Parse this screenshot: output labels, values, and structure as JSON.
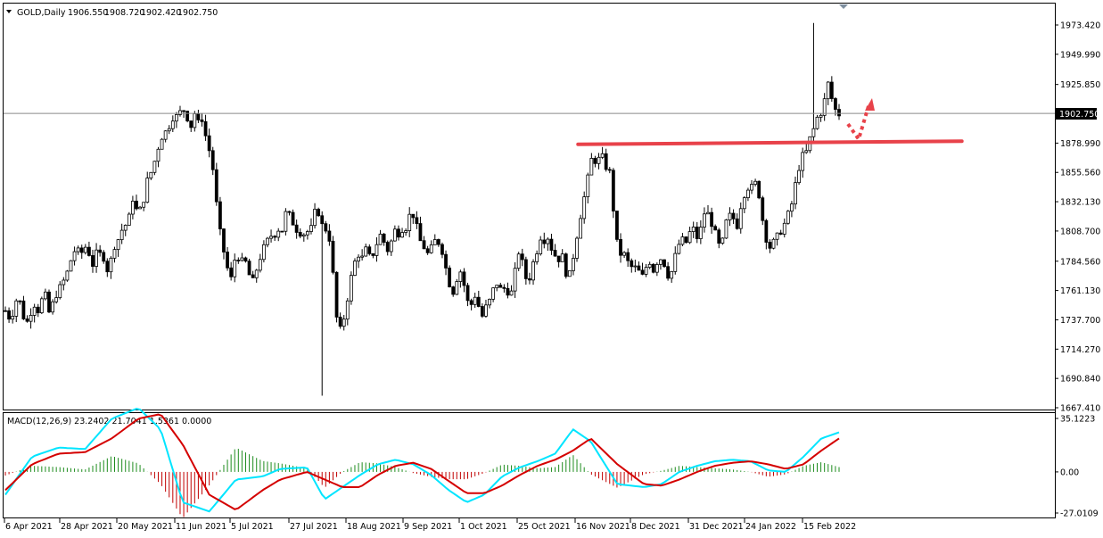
{
  "chart_data": [
    {
      "type": "candlestick",
      "title": "GOLD,Daily",
      "ohlc_readout": [
        "1906.550",
        "1908.720",
        "1902.420",
        "1902.750"
      ],
      "last_price": 1902.75,
      "last_price_label": "1902.750",
      "ylim": [
        1667.41,
        1985.0
      ],
      "y_ticks": [
        "1973.420",
        "1949.990",
        "1925.850",
        "1902.750",
        "1878.990",
        "1855.560",
        "1832.130",
        "1808.700",
        "1784.560",
        "1761.130",
        "1737.700",
        "1714.270",
        "1690.840",
        "1667.410"
      ],
      "x_ticks": [
        "6 Apr 2021",
        "28 Apr 2021",
        "20 May 2021",
        "11 Jun 2021",
        "5 Jul 2021",
        "27 Jul 2021",
        "18 Aug 2021",
        "9 Sep 2021",
        "1 Oct 2021",
        "25 Oct 2021",
        "16 Nov 2021",
        "8 Dec 2021",
        "31 Dec 2021",
        "24 Jan 2022",
        "15 Feb 2022"
      ],
      "up_color": "#ffffff",
      "down_color": "#000000",
      "path_points": [
        [
          0,
          1745
        ],
        [
          3,
          1738
        ],
        [
          5,
          1745
        ],
        [
          8,
          1760
        ],
        [
          10,
          1742
        ],
        [
          14,
          1735
        ],
        [
          17,
          1752
        ],
        [
          20,
          1745
        ],
        [
          24,
          1760
        ],
        [
          27,
          1742
        ],
        [
          30,
          1755
        ],
        [
          34,
          1765
        ],
        [
          37,
          1772
        ],
        [
          40,
          1785
        ],
        [
          43,
          1795
        ],
        [
          46,
          1790
        ],
        [
          50,
          1798
        ],
        [
          53,
          1780
        ],
        [
          56,
          1792
        ],
        [
          60,
          1788
        ],
        [
          63,
          1775
        ],
        [
          66,
          1795
        ],
        [
          69,
          1802
        ],
        [
          72,
          1812
        ],
        [
          75,
          1815
        ],
        [
          78,
          1835
        ],
        [
          81,
          1822
        ],
        [
          84,
          1830
        ],
        [
          87,
          1850
        ],
        [
          90,
          1858
        ],
        [
          92,
          1868
        ],
        [
          94,
          1878
        ],
        [
          96,
          1885
        ],
        [
          98,
          1888
        ],
        [
          100,
          1892
        ],
        [
          102,
          1900
        ],
        [
          104,
          1898
        ],
        [
          106,
          1905
        ],
        [
          108,
          1902
        ],
        [
          110,
          1908
        ],
        [
          112,
          1895
        ],
        [
          114,
          1892
        ],
        [
          116,
          1904
        ],
        [
          118,
          1895
        ],
        [
          120,
          1900
        ],
        [
          122,
          1888
        ],
        [
          124,
          1875
        ],
        [
          126,
          1870
        ],
        [
          128,
          1845
        ],
        [
          130,
          1820
        ],
        [
          132,
          1802
        ],
        [
          134,
          1790
        ],
        [
          136,
          1778
        ],
        [
          138,
          1770
        ],
        [
          140,
          1785
        ],
        [
          142,
          1790
        ],
        [
          144,
          1782
        ],
        [
          146,
          1788
        ],
        [
          148,
          1779
        ],
        [
          150,
          1770
        ],
        [
          152,
          1768
        ],
        [
          154,
          1780
        ],
        [
          156,
          1788
        ],
        [
          158,
          1795
        ],
        [
          160,
          1800
        ],
        [
          162,
          1805
        ],
        [
          164,
          1805
        ],
        [
          166,
          1808
        ],
        [
          168,
          1812
        ],
        [
          170,
          1808
        ],
        [
          172,
          1828
        ],
        [
          174,
          1820
        ],
        [
          176,
          1815
        ],
        [
          178,
          1810
        ],
        [
          180,
          1808
        ],
        [
          182,
          1805
        ],
        [
          184,
          1810
        ],
        [
          186,
          1806
        ],
        [
          188,
          1815
        ],
        [
          190,
          1828
        ],
        [
          192,
          1822
        ],
        [
          194,
          1812
        ],
        [
          196,
          1810
        ],
        [
          198,
          1805
        ],
        [
          200,
          1782
        ],
        [
          202,
          1745
        ],
        [
          204,
          1728
        ],
        [
          206,
          1732
        ],
        [
          208,
          1745
        ],
        [
          210,
          1760
        ],
        [
          212,
          1775
        ],
        [
          214,
          1785
        ],
        [
          216,
          1790
        ],
        [
          218,
          1786
        ],
        [
          220,
          1795
        ],
        [
          222,
          1790
        ],
        [
          224,
          1785
        ],
        [
          226,
          1797
        ],
        [
          228,
          1800
        ],
        [
          230,
          1808
        ],
        [
          232,
          1798
        ],
        [
          234,
          1793
        ],
        [
          236,
          1800
        ],
        [
          238,
          1810
        ],
        [
          240,
          1805
        ],
        [
          242,
          1812
        ],
        [
          244,
          1808
        ],
        [
          246,
          1815
        ],
        [
          248,
          1825
        ],
        [
          250,
          1820
        ],
        [
          252,
          1810
        ],
        [
          254,
          1800
        ],
        [
          256,
          1796
        ],
        [
          258,
          1790
        ],
        [
          260,
          1793
        ],
        [
          262,
          1800
        ],
        [
          264,
          1802
        ],
        [
          266,
          1797
        ],
        [
          268,
          1790
        ],
        [
          270,
          1775
        ],
        [
          272,
          1765
        ],
        [
          274,
          1760
        ],
        [
          276,
          1770
        ],
        [
          278,
          1778
        ],
        [
          280,
          1770
        ],
        [
          282,
          1755
        ],
        [
          284,
          1748
        ],
        [
          286,
          1752
        ],
        [
          288,
          1760
        ],
        [
          290,
          1745
        ],
        [
          292,
          1740
        ],
        [
          294,
          1748
        ],
        [
          296,
          1752
        ],
        [
          298,
          1760
        ],
        [
          300,
          1768
        ],
        [
          302,
          1764
        ],
        [
          304,
          1760
        ],
        [
          306,
          1765
        ],
        [
          308,
          1758
        ],
        [
          310,
          1760
        ],
        [
          312,
          1778
        ],
        [
          314,
          1792
        ],
        [
          316,
          1785
        ],
        [
          318,
          1772
        ],
        [
          320,
          1768
        ],
        [
          322,
          1778
        ],
        [
          324,
          1790
        ],
        [
          326,
          1795
        ],
        [
          328,
          1808
        ],
        [
          330,
          1800
        ],
        [
          332,
          1804
        ],
        [
          334,
          1795
        ],
        [
          336,
          1790
        ],
        [
          338,
          1785
        ],
        [
          340,
          1790
        ],
        [
          342,
          1785
        ],
        [
          344,
          1765
        ],
        [
          346,
          1780
        ],
        [
          348,
          1792
        ],
        [
          350,
          1808
        ],
        [
          352,
          1822
        ],
        [
          354,
          1835
        ],
        [
          356,
          1848
        ],
        [
          358,
          1865
        ],
        [
          360,
          1868
        ],
        [
          362,
          1860
        ],
        [
          364,
          1872
        ],
        [
          366,
          1865
        ],
        [
          368,
          1858
        ],
        [
          370,
          1855
        ],
        [
          372,
          1825
        ],
        [
          374,
          1800
        ],
        [
          376,
          1790
        ],
        [
          378,
          1792
        ],
        [
          380,
          1785
        ],
        [
          382,
          1782
        ],
        [
          384,
          1778
        ],
        [
          386,
          1780
        ],
        [
          388,
          1775
        ],
        [
          390,
          1772
        ],
        [
          392,
          1780
        ],
        [
          394,
          1785
        ],
        [
          396,
          1776
        ],
        [
          398,
          1782
        ],
        [
          400,
          1788
        ],
        [
          402,
          1785
        ],
        [
          404,
          1780
        ],
        [
          406,
          1770
        ],
        [
          408,
          1778
        ],
        [
          410,
          1790
        ],
        [
          412,
          1798
        ],
        [
          414,
          1802
        ],
        [
          416,
          1798
        ],
        [
          418,
          1805
        ],
        [
          420,
          1812
        ],
        [
          422,
          1808
        ],
        [
          424,
          1800
        ],
        [
          426,
          1815
        ],
        [
          428,
          1825
        ],
        [
          430,
          1822
        ],
        [
          432,
          1815
        ],
        [
          434,
          1808
        ],
        [
          436,
          1798
        ],
        [
          438,
          1795
        ],
        [
          440,
          1810
        ],
        [
          442,
          1822
        ],
        [
          444,
          1820
        ],
        [
          446,
          1818
        ],
        [
          448,
          1812
        ],
        [
          450,
          1830
        ],
        [
          452,
          1838
        ],
        [
          454,
          1844
        ],
        [
          456,
          1842
        ],
        [
          458,
          1848
        ],
        [
          460,
          1845
        ],
        [
          462,
          1830
        ],
        [
          464,
          1810
        ],
        [
          466,
          1800
        ],
        [
          468,
          1795
        ],
        [
          470,
          1800
        ],
        [
          472,
          1804
        ],
        [
          474,
          1808
        ],
        [
          476,
          1812
        ],
        [
          478,
          1820
        ],
        [
          480,
          1825
        ],
        [
          482,
          1835
        ],
        [
          484,
          1852
        ],
        [
          486,
          1862
        ],
        [
          488,
          1870
        ],
        [
          490,
          1872
        ],
        [
          492,
          1882
        ],
        [
          494,
          1888
        ],
        [
          496,
          1898
        ],
        [
          498,
          1902
        ],
        [
          500,
          1905
        ],
        [
          502,
          1920
        ],
        [
          504,
          1930
        ],
        [
          506,
          1910
        ],
        [
          508,
          1905
        ],
        [
          510,
          1902
        ]
      ],
      "hline_price": 1902.75,
      "resistance_line": {
        "from": [
          1.008,
          1878.0
        ],
        "to": [
          1.172,
          1880.5
        ],
        "color": "#e8424a"
      },
      "arrow_color": "#e8424a"
    },
    {
      "type": "macd",
      "label": "MACD(12,26,9) 23.2402 21.7041 1.5361 0.0000",
      "ylim": [
        -27.0109,
        35.1223
      ],
      "y_ticks": [
        "35.1223",
        "0.00",
        "-27.0109"
      ],
      "macd_color": "#00e5ff",
      "signal_color": "#d40000",
      "hist_pos_color": "#1e8c1e",
      "hist_neg_color": "#c00000",
      "macd_points": [
        [
          0,
          -15
        ],
        [
          30,
          10
        ],
        [
          60,
          16
        ],
        [
          90,
          15
        ],
        [
          120,
          35
        ],
        [
          150,
          42
        ],
        [
          175,
          28
        ],
        [
          200,
          -20
        ],
        [
          230,
          -26
        ],
        [
          260,
          -5
        ],
        [
          290,
          -3
        ],
        [
          310,
          2
        ],
        [
          340,
          3
        ],
        [
          360,
          -18
        ],
        [
          380,
          -10
        ],
        [
          400,
          -2
        ],
        [
          420,
          5
        ],
        [
          440,
          8
        ],
        [
          460,
          5
        ],
        [
          480,
          -2
        ],
        [
          500,
          -12
        ],
        [
          520,
          -20
        ],
        [
          540,
          -15
        ],
        [
          560,
          -3
        ],
        [
          580,
          3
        ],
        [
          600,
          7
        ],
        [
          620,
          12
        ],
        [
          640,
          28
        ],
        [
          660,
          20
        ],
        [
          690,
          -8
        ],
        [
          720,
          -10
        ],
        [
          740,
          -8
        ],
        [
          760,
          0
        ],
        [
          780,
          4
        ],
        [
          800,
          7
        ],
        [
          820,
          8
        ],
        [
          840,
          7
        ],
        [
          860,
          1
        ],
        [
          880,
          0
        ],
        [
          900,
          10
        ],
        [
          920,
          22
        ],
        [
          940,
          26
        ]
      ],
      "signal_points": [
        [
          0,
          -12
        ],
        [
          30,
          5
        ],
        [
          60,
          12
        ],
        [
          90,
          13
        ],
        [
          120,
          22
        ],
        [
          150,
          35
        ],
        [
          175,
          38
        ],
        [
          200,
          18
        ],
        [
          230,
          -15
        ],
        [
          260,
          -25
        ],
        [
          290,
          -12
        ],
        [
          310,
          -5
        ],
        [
          340,
          0
        ],
        [
          360,
          -5
        ],
        [
          380,
          -10
        ],
        [
          400,
          -10
        ],
        [
          420,
          -2
        ],
        [
          440,
          4
        ],
        [
          460,
          6
        ],
        [
          480,
          2
        ],
        [
          500,
          -6
        ],
        [
          520,
          -14
        ],
        [
          540,
          -14
        ],
        [
          560,
          -9
        ],
        [
          580,
          -2
        ],
        [
          600,
          4
        ],
        [
          620,
          8
        ],
        [
          640,
          14
        ],
        [
          660,
          22
        ],
        [
          690,
          5
        ],
        [
          720,
          -8
        ],
        [
          740,
          -9
        ],
        [
          760,
          -5
        ],
        [
          780,
          0
        ],
        [
          800,
          4
        ],
        [
          820,
          6
        ],
        [
          840,
          7
        ],
        [
          860,
          5
        ],
        [
          880,
          2
        ],
        [
          900,
          5
        ],
        [
          920,
          14
        ],
        [
          940,
          22
        ]
      ]
    }
  ]
}
